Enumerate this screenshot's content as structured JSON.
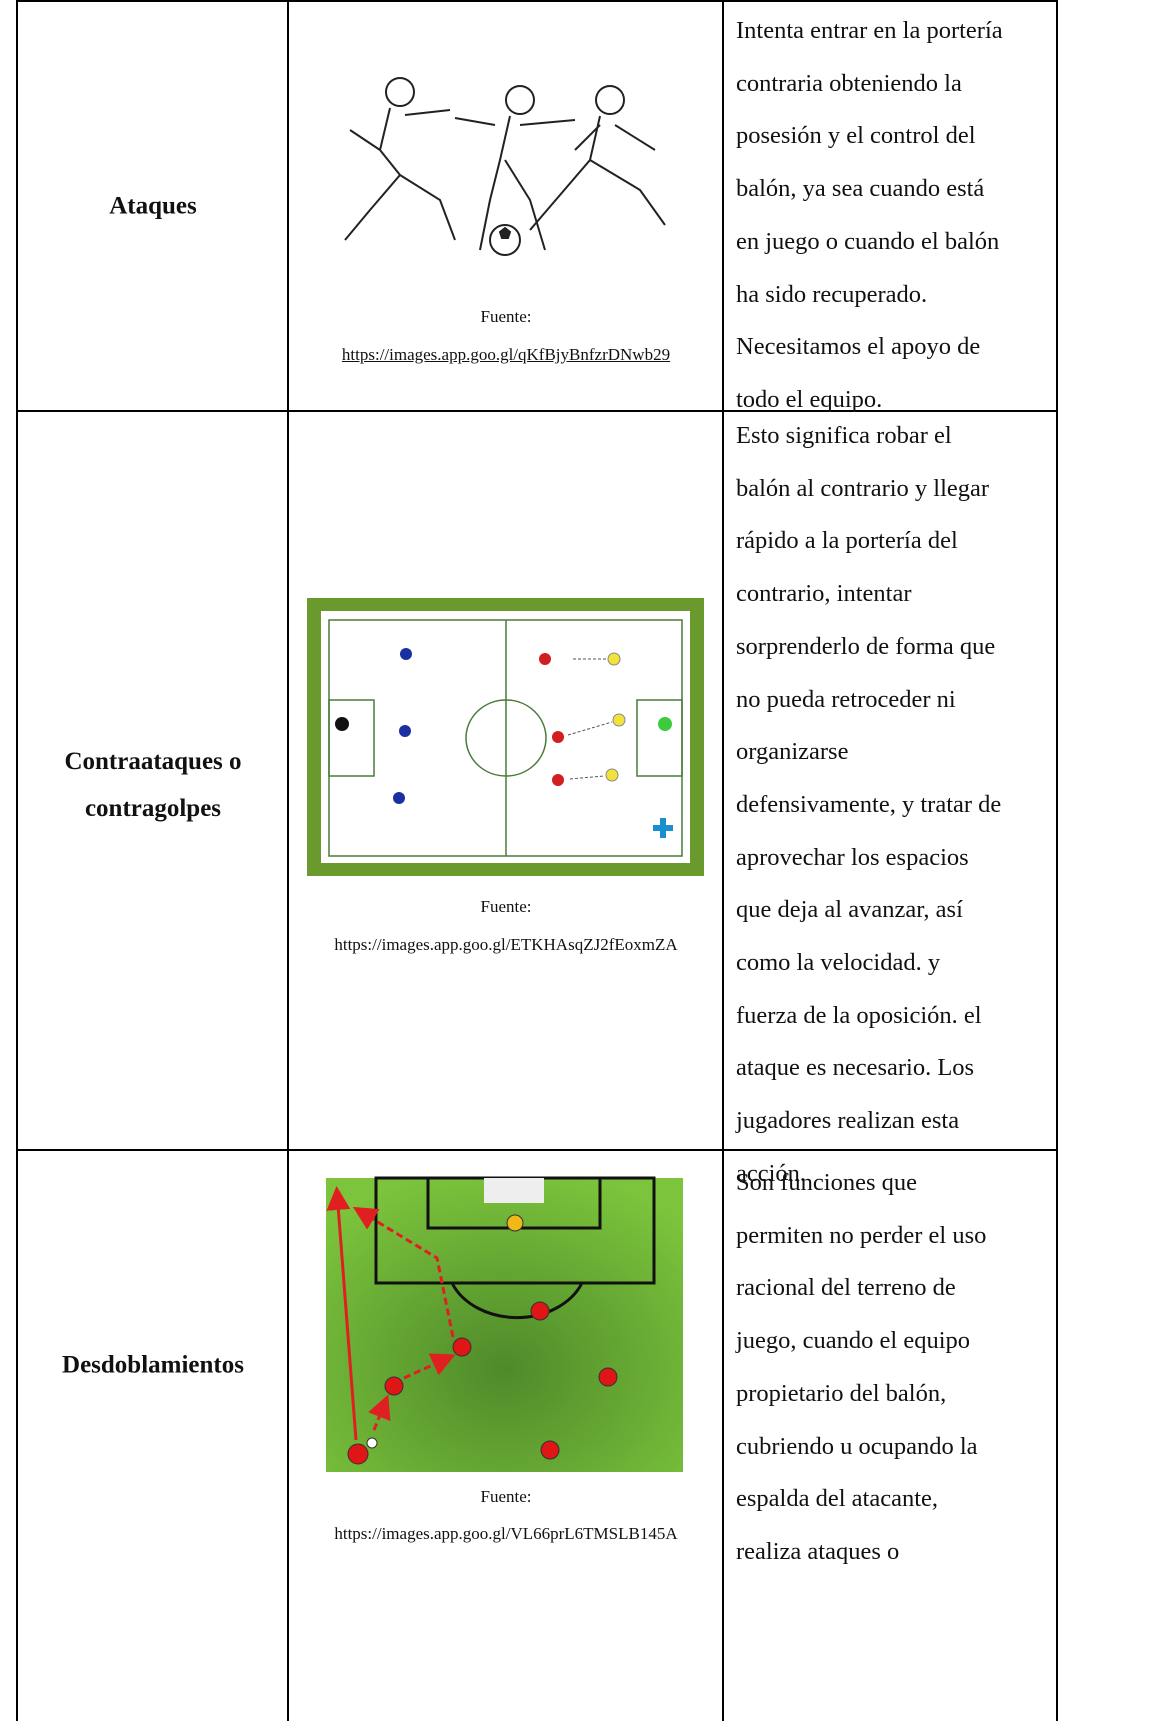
{
  "table": {
    "rows": [
      {
        "concept": "Ataques",
        "caption_label": "Fuente:",
        "source_url": "https://images.app.goo.gl/qKfBjyBnfzrDNwb29",
        "description": [
          "Intenta entrar en la portería",
          "contraria obteniendo la",
          "posesión y el control del",
          "balón, ya sea cuando está",
          "en juego o cuando el balón",
          "ha sido recuperado.",
          "Necesitamos el apoyo de",
          "todo el equipo."
        ]
      },
      {
        "concept": "Contraataques o contragolpes",
        "caption_label": "Fuente:",
        "source_url": "https://images.app.goo.gl/ETKHAsqZJ2fEoxmZA",
        "description": [
          "Esto significa robar el",
          "balón al contrario y llegar",
          "rápido a la portería del",
          "contrario, intentar",
          "sorprenderlo de forma que",
          "no pueda retroceder ni",
          "organizarse",
          "defensivamente, y tratar de",
          "aprovechar los espacios",
          "que deja al avanzar, así",
          "como la velocidad. y",
          "fuerza de la oposición. el",
          "ataque es necesario. Los",
          "jugadores realizan esta",
          "acción."
        ]
      },
      {
        "concept": "Desdoblamientos",
        "caption_label": "Fuente:",
        "source_url": "https://images.app.goo.gl/VL66prL6TMSLB145A",
        "description": [
          "Son funciones que",
          "permiten no perder el uso",
          "racional del terreno de",
          "juego, cuando el equipo",
          "propietario del balón,",
          "cubriendo u ocupando la",
          "espalda del atacante,",
          "realiza ataques o"
        ]
      }
    ]
  }
}
